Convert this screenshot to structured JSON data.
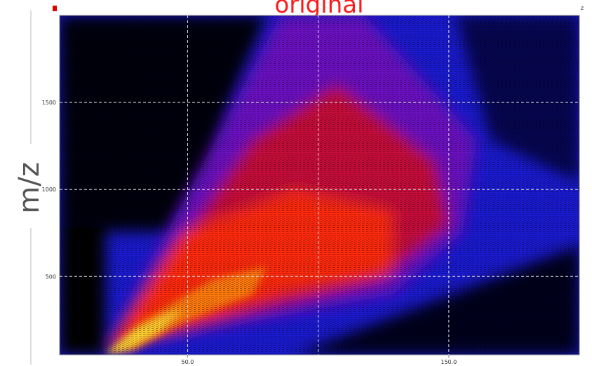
{
  "chart_data": {
    "type": "heatmap",
    "title": "original",
    "corner_label": "z",
    "y_label": "m/z",
    "xlim": [
      1,
      200
    ],
    "ylim": [
      50,
      2000
    ],
    "xticks": [
      {
        "value": 50,
        "label": "50.0"
      },
      {
        "value": 150,
        "label": "150.0"
      }
    ],
    "xgrid": [
      50,
      100,
      150
    ],
    "yticks": [
      500,
      1000,
      1500
    ],
    "grid": true
  }
}
